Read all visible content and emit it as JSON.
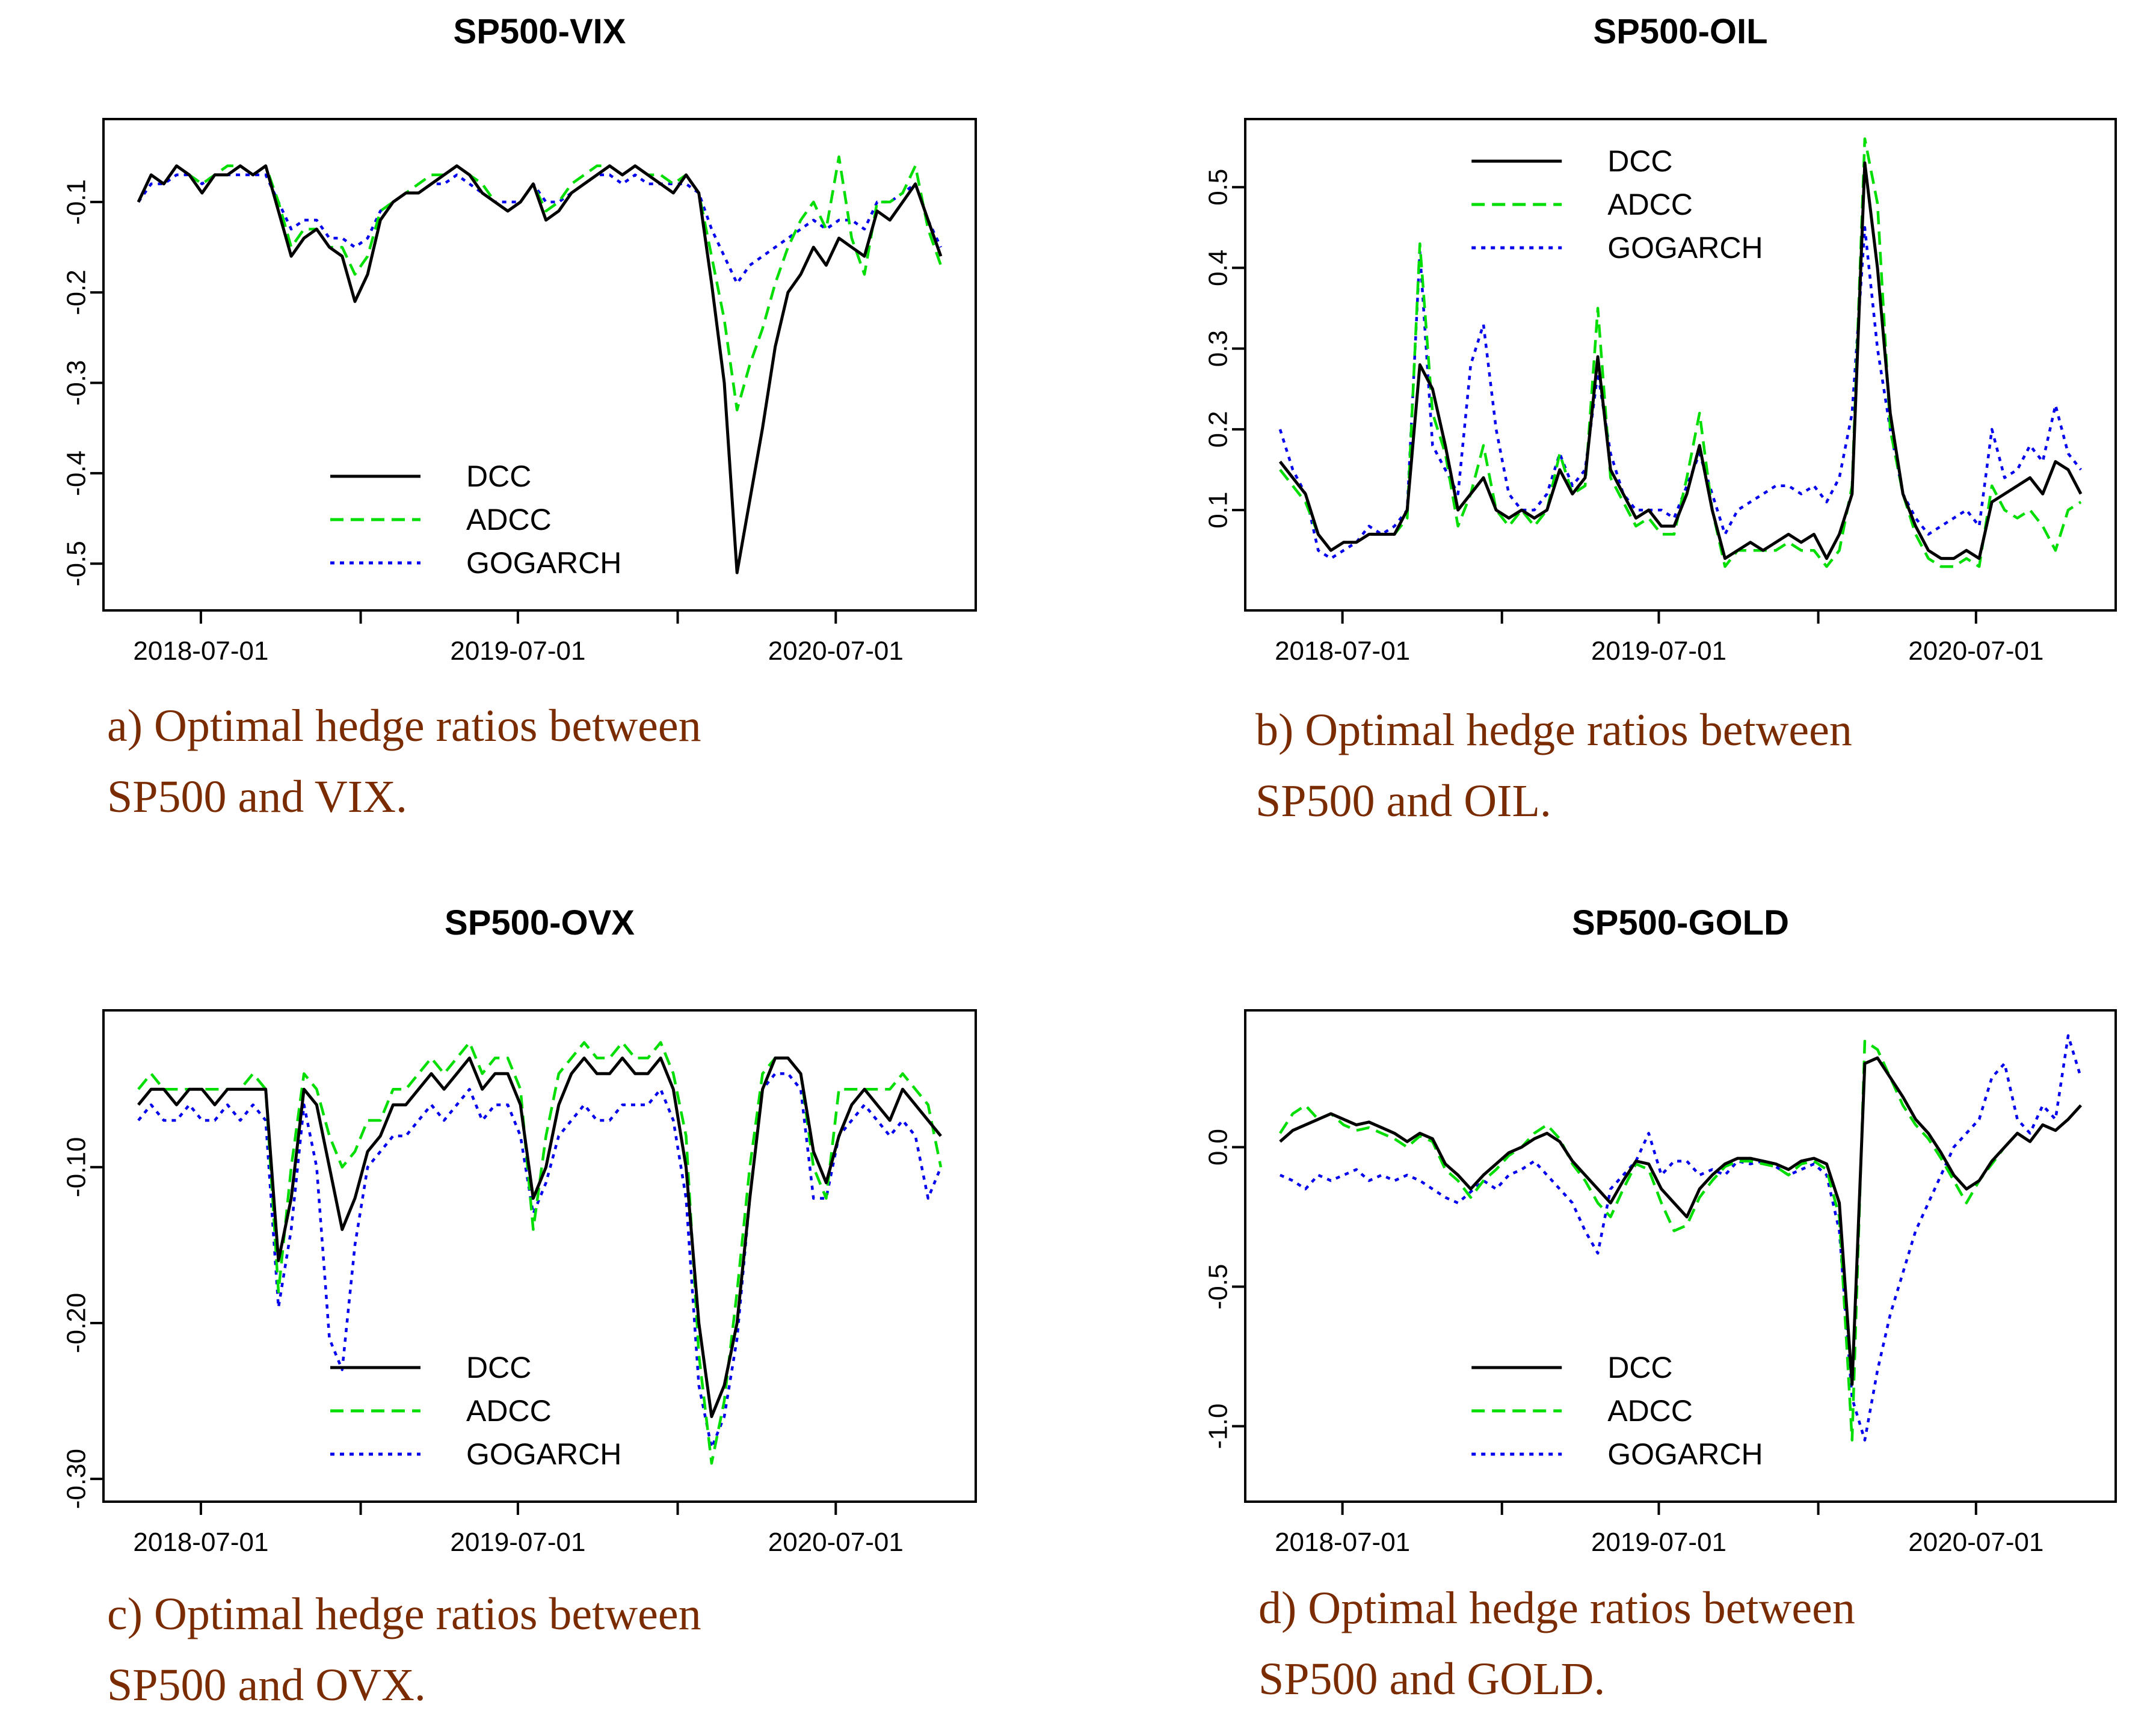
{
  "colors": {
    "DCC": "#000000",
    "ADCC": "#00dd00",
    "GOGARCH": "#0000ee",
    "caption": "#7a2c00"
  },
  "chart_data": [
    {
      "id": "a",
      "type": "line",
      "title": "SP500-VIX",
      "x_labels": [
        "2018-07-01",
        "2019-07-01",
        "2020-07-01"
      ],
      "x_range": [
        "2018-04-20",
        "2020-10-30"
      ],
      "ylim": [
        -0.53,
        -0.03
      ],
      "y_ticks": [
        -0.1,
        -0.2,
        -0.3,
        -0.4,
        -0.5
      ],
      "y_tick_labels": [
        "-0.1",
        "-0.2",
        "-0.3",
        "-0.4",
        "-0.5"
      ],
      "legend": [
        "DCC",
        "ADCC",
        "GOGARCH"
      ],
      "legend_position": "bottom-center",
      "series": [
        {
          "name": "DCC",
          "values": [
            -0.1,
            -0.07,
            -0.08,
            -0.06,
            -0.07,
            -0.09,
            -0.07,
            -0.07,
            -0.06,
            -0.07,
            -0.06,
            -0.11,
            -0.16,
            -0.14,
            -0.13,
            -0.15,
            -0.16,
            -0.21,
            -0.18,
            -0.12,
            -0.1,
            -0.09,
            -0.09,
            -0.08,
            -0.07,
            -0.06,
            -0.07,
            -0.09,
            -0.1,
            -0.11,
            -0.1,
            -0.08,
            -0.12,
            -0.11,
            -0.09,
            -0.08,
            -0.07,
            -0.06,
            -0.07,
            -0.06,
            -0.07,
            -0.08,
            -0.09,
            -0.07,
            -0.09,
            -0.19,
            -0.3,
            -0.51,
            -0.43,
            -0.35,
            -0.26,
            -0.2,
            -0.18,
            -0.15,
            -0.17,
            -0.14,
            -0.15,
            -0.16,
            -0.11,
            -0.12,
            -0.1,
            -0.08,
            -0.12,
            -0.16
          ]
        },
        {
          "name": "ADCC",
          "values": [
            -0.1,
            -0.07,
            -0.08,
            -0.06,
            -0.07,
            -0.08,
            -0.07,
            -0.06,
            -0.06,
            -0.07,
            -0.06,
            -0.1,
            -0.15,
            -0.13,
            -0.13,
            -0.15,
            -0.15,
            -0.18,
            -0.16,
            -0.11,
            -0.1,
            -0.09,
            -0.08,
            -0.07,
            -0.07,
            -0.06,
            -0.07,
            -0.08,
            -0.1,
            -0.11,
            -0.1,
            -0.08,
            -0.11,
            -0.1,
            -0.08,
            -0.07,
            -0.06,
            -0.06,
            -0.07,
            -0.06,
            -0.07,
            -0.07,
            -0.08,
            -0.07,
            -0.09,
            -0.16,
            -0.23,
            -0.33,
            -0.28,
            -0.24,
            -0.19,
            -0.15,
            -0.12,
            -0.1,
            -0.13,
            -0.05,
            -0.14,
            -0.18,
            -0.1,
            -0.1,
            -0.09,
            -0.06,
            -0.13,
            -0.17
          ]
        },
        {
          "name": "GOGARCH",
          "values": [
            -0.1,
            -0.08,
            -0.08,
            -0.07,
            -0.07,
            -0.08,
            -0.07,
            -0.07,
            -0.07,
            -0.07,
            -0.07,
            -0.1,
            -0.13,
            -0.12,
            -0.12,
            -0.14,
            -0.14,
            -0.15,
            -0.14,
            -0.11,
            -0.1,
            -0.09,
            -0.09,
            -0.08,
            -0.08,
            -0.07,
            -0.08,
            -0.09,
            -0.1,
            -0.1,
            -0.1,
            -0.08,
            -0.1,
            -0.1,
            -0.09,
            -0.08,
            -0.07,
            -0.07,
            -0.08,
            -0.07,
            -0.08,
            -0.08,
            -0.08,
            -0.08,
            -0.09,
            -0.13,
            -0.16,
            -0.19,
            -0.17,
            -0.16,
            -0.15,
            -0.14,
            -0.13,
            -0.12,
            -0.13,
            -0.12,
            -0.12,
            -0.13,
            -0.1,
            -0.1,
            -0.09,
            -0.08,
            -0.12,
            -0.15
          ]
        }
      ],
      "caption": [
        "a) Optimal hedge ratios between",
        "SP500 and VIX."
      ]
    },
    {
      "id": "b",
      "type": "line",
      "title": "SP500-OIL",
      "x_labels": [
        "2018-07-01",
        "2019-07-01",
        "2020-07-01"
      ],
      "x_range": [
        "2018-04-20",
        "2020-10-30"
      ],
      "ylim": [
        0.0,
        0.56
      ],
      "y_ticks": [
        0.1,
        0.2,
        0.3,
        0.4,
        0.5
      ],
      "y_tick_labels": [
        "0.1",
        "0.2",
        "0.3",
        "0.4",
        "0.5"
      ],
      "legend": [
        "DCC",
        "ADCC",
        "GOGARCH"
      ],
      "legend_position": "top-center",
      "series": [
        {
          "name": "DCC",
          "values": [
            0.16,
            0.14,
            0.12,
            0.07,
            0.05,
            0.06,
            0.06,
            0.07,
            0.07,
            0.07,
            0.1,
            0.28,
            0.25,
            0.18,
            0.1,
            0.12,
            0.14,
            0.1,
            0.09,
            0.1,
            0.09,
            0.1,
            0.15,
            0.12,
            0.14,
            0.29,
            0.15,
            0.12,
            0.09,
            0.1,
            0.08,
            0.08,
            0.12,
            0.18,
            0.1,
            0.04,
            0.05,
            0.06,
            0.05,
            0.06,
            0.07,
            0.06,
            0.07,
            0.04,
            0.07,
            0.12,
            0.53,
            0.4,
            0.22,
            0.12,
            0.08,
            0.05,
            0.04,
            0.04,
            0.05,
            0.04,
            0.11,
            0.12,
            0.13,
            0.14,
            0.12,
            0.16,
            0.15,
            0.12
          ]
        },
        {
          "name": "ADCC",
          "values": [
            0.15,
            0.13,
            0.11,
            0.07,
            0.05,
            0.06,
            0.06,
            0.07,
            0.07,
            0.07,
            0.09,
            0.43,
            0.22,
            0.17,
            0.08,
            0.12,
            0.18,
            0.1,
            0.08,
            0.1,
            0.08,
            0.1,
            0.17,
            0.12,
            0.13,
            0.35,
            0.14,
            0.11,
            0.08,
            0.09,
            0.07,
            0.07,
            0.14,
            0.22,
            0.1,
            0.03,
            0.05,
            0.05,
            0.05,
            0.05,
            0.06,
            0.05,
            0.05,
            0.03,
            0.05,
            0.13,
            0.56,
            0.48,
            0.2,
            0.12,
            0.07,
            0.04,
            0.03,
            0.03,
            0.04,
            0.03,
            0.13,
            0.1,
            0.09,
            0.1,
            0.08,
            0.05,
            0.1,
            0.11
          ]
        },
        {
          "name": "GOGARCH",
          "values": [
            0.2,
            0.15,
            0.12,
            0.05,
            0.04,
            0.05,
            0.06,
            0.08,
            0.07,
            0.08,
            0.1,
            0.42,
            0.18,
            0.15,
            0.12,
            0.28,
            0.33,
            0.2,
            0.12,
            0.1,
            0.1,
            0.12,
            0.17,
            0.13,
            0.15,
            0.27,
            0.17,
            0.12,
            0.1,
            0.1,
            0.1,
            0.09,
            0.13,
            0.17,
            0.12,
            0.07,
            0.1,
            0.11,
            0.12,
            0.13,
            0.13,
            0.12,
            0.13,
            0.11,
            0.14,
            0.22,
            0.45,
            0.3,
            0.2,
            0.12,
            0.09,
            0.07,
            0.08,
            0.09,
            0.1,
            0.08,
            0.2,
            0.14,
            0.15,
            0.18,
            0.16,
            0.23,
            0.17,
            0.15
          ]
        }
      ],
      "caption": [
        "b) Optimal hedge ratios between",
        "SP500 and OIL."
      ]
    },
    {
      "id": "c",
      "type": "line",
      "title": "SP500-OVX",
      "x_labels": [
        "2018-07-01",
        "2019-07-01",
        "2020-07-01"
      ],
      "x_range": [
        "2018-04-20",
        "2020-10-30"
      ],
      "ylim": [
        -0.302,
        -0.012
      ],
      "y_ticks": [
        -0.1,
        -0.2,
        -0.3
      ],
      "y_tick_labels": [
        "-0.10",
        "-0.20",
        "-0.30"
      ],
      "legend": [
        "DCC",
        "ADCC",
        "GOGARCH"
      ],
      "legend_position": "bottom-center",
      "series": [
        {
          "name": "DCC",
          "values": [
            -0.06,
            -0.05,
            -0.05,
            -0.06,
            -0.05,
            -0.05,
            -0.06,
            -0.05,
            -0.05,
            -0.05,
            -0.05,
            -0.16,
            -0.12,
            -0.05,
            -0.06,
            -0.1,
            -0.14,
            -0.12,
            -0.09,
            -0.08,
            -0.06,
            -0.06,
            -0.05,
            -0.04,
            -0.05,
            -0.04,
            -0.03,
            -0.05,
            -0.04,
            -0.04,
            -0.06,
            -0.12,
            -0.1,
            -0.06,
            -0.04,
            -0.03,
            -0.04,
            -0.04,
            -0.03,
            -0.04,
            -0.04,
            -0.03,
            -0.05,
            -0.1,
            -0.2,
            -0.26,
            -0.24,
            -0.2,
            -0.12,
            -0.05,
            -0.03,
            -0.03,
            -0.04,
            -0.09,
            -0.11,
            -0.08,
            -0.06,
            -0.05,
            -0.06,
            -0.07,
            -0.05,
            -0.06,
            -0.07,
            -0.08
          ]
        },
        {
          "name": "ADCC",
          "values": [
            -0.05,
            -0.04,
            -0.05,
            -0.05,
            -0.05,
            -0.05,
            -0.05,
            -0.05,
            -0.05,
            -0.04,
            -0.05,
            -0.18,
            -0.1,
            -0.04,
            -0.05,
            -0.08,
            -0.1,
            -0.09,
            -0.07,
            -0.07,
            -0.05,
            -0.05,
            -0.04,
            -0.03,
            -0.04,
            -0.03,
            -0.02,
            -0.04,
            -0.03,
            -0.03,
            -0.05,
            -0.14,
            -0.08,
            -0.04,
            -0.03,
            -0.02,
            -0.03,
            -0.03,
            -0.02,
            -0.03,
            -0.03,
            -0.02,
            -0.04,
            -0.08,
            -0.22,
            -0.29,
            -0.25,
            -0.18,
            -0.1,
            -0.04,
            -0.03,
            -0.03,
            -0.04,
            -0.1,
            -0.12,
            -0.05,
            -0.05,
            -0.05,
            -0.05,
            -0.05,
            -0.04,
            -0.05,
            -0.06,
            -0.1
          ]
        },
        {
          "name": "GOGARCH",
          "values": [
            -0.07,
            -0.06,
            -0.07,
            -0.07,
            -0.06,
            -0.07,
            -0.07,
            -0.06,
            -0.07,
            -0.06,
            -0.07,
            -0.19,
            -0.14,
            -0.06,
            -0.1,
            -0.21,
            -0.23,
            -0.15,
            -0.1,
            -0.09,
            -0.08,
            -0.08,
            -0.07,
            -0.06,
            -0.07,
            -0.06,
            -0.05,
            -0.07,
            -0.06,
            -0.06,
            -0.08,
            -0.13,
            -0.11,
            -0.08,
            -0.07,
            -0.06,
            -0.07,
            -0.07,
            -0.06,
            -0.06,
            -0.06,
            -0.05,
            -0.07,
            -0.12,
            -0.24,
            -0.28,
            -0.26,
            -0.21,
            -0.12,
            -0.05,
            -0.04,
            -0.04,
            -0.05,
            -0.12,
            -0.12,
            -0.08,
            -0.07,
            -0.06,
            -0.07,
            -0.08,
            -0.07,
            -0.08,
            -0.12,
            -0.1
          ]
        }
      ],
      "caption": [
        "c) Optimal hedge ratios between",
        "SP500 and OVX."
      ]
    },
    {
      "id": "d",
      "type": "line",
      "title": "SP500-GOLD",
      "x_labels": [
        "2018-07-01",
        "2019-07-01",
        "2020-07-01"
      ],
      "x_range": [
        "2018-04-20",
        "2020-10-30"
      ],
      "ylim": [
        -1.2,
        0.42
      ],
      "y_ticks": [
        0.0,
        -0.5,
        -1.0
      ],
      "y_tick_labels": [
        "0.0",
        "-0.5",
        "-1.0"
      ],
      "legend": [
        "DCC",
        "ADCC",
        "GOGARCH"
      ],
      "legend_position": "bottom-center",
      "series": [
        {
          "name": "DCC",
          "values": [
            0.02,
            0.06,
            0.08,
            0.1,
            0.12,
            0.1,
            0.08,
            0.09,
            0.07,
            0.05,
            0.02,
            0.05,
            0.03,
            -0.06,
            -0.1,
            -0.15,
            -0.1,
            -0.06,
            -0.02,
            0.0,
            0.03,
            0.05,
            0.02,
            -0.05,
            -0.1,
            -0.15,
            -0.2,
            -0.12,
            -0.05,
            -0.06,
            -0.15,
            -0.2,
            -0.25,
            -0.15,
            -0.1,
            -0.06,
            -0.04,
            -0.04,
            -0.05,
            -0.06,
            -0.08,
            -0.05,
            -0.04,
            -0.06,
            -0.2,
            -0.85,
            0.3,
            0.32,
            0.25,
            0.18,
            0.1,
            0.05,
            -0.02,
            -0.1,
            -0.15,
            -0.12,
            -0.05,
            0.0,
            0.05,
            0.02,
            0.08,
            0.06,
            0.1,
            0.15
          ]
        },
        {
          "name": "ADCC",
          "values": [
            0.05,
            0.12,
            0.15,
            0.1,
            0.12,
            0.08,
            0.06,
            0.07,
            0.05,
            0.03,
            0.0,
            0.04,
            0.02,
            -0.08,
            -0.12,
            -0.18,
            -0.12,
            -0.08,
            -0.03,
            0.0,
            0.05,
            0.08,
            0.03,
            -0.06,
            -0.12,
            -0.2,
            -0.25,
            -0.15,
            -0.06,
            -0.08,
            -0.2,
            -0.3,
            -0.28,
            -0.18,
            -0.12,
            -0.07,
            -0.05,
            -0.05,
            -0.06,
            -0.07,
            -0.1,
            -0.06,
            -0.05,
            -0.08,
            -0.25,
            -1.05,
            0.38,
            0.35,
            0.25,
            0.15,
            0.08,
            0.03,
            -0.04,
            -0.12,
            -0.2,
            -0.12,
            -0.06,
            0.0,
            0.05,
            0.02,
            0.08,
            0.06,
            0.1,
            0.15
          ]
        },
        {
          "name": "GOGARCH",
          "values": [
            -0.1,
            -0.12,
            -0.15,
            -0.1,
            -0.12,
            -0.1,
            -0.08,
            -0.12,
            -0.1,
            -0.12,
            -0.1,
            -0.12,
            -0.15,
            -0.18,
            -0.2,
            -0.16,
            -0.12,
            -0.15,
            -0.1,
            -0.08,
            -0.05,
            -0.1,
            -0.15,
            -0.2,
            -0.3,
            -0.38,
            -0.15,
            -0.1,
            -0.05,
            0.05,
            -0.1,
            -0.05,
            -0.05,
            -0.1,
            -0.08,
            -0.1,
            -0.05,
            -0.06,
            -0.05,
            -0.07,
            -0.1,
            -0.08,
            -0.06,
            -0.1,
            -0.3,
            -0.9,
            -1.05,
            -0.8,
            -0.6,
            -0.45,
            -0.3,
            -0.2,
            -0.1,
            0.0,
            0.05,
            0.1,
            0.25,
            0.3,
            0.1,
            0.05,
            0.15,
            0.1,
            0.4,
            0.25
          ]
        }
      ],
      "caption": [
        "d) Optimal hedge ratios between",
        "SP500 and GOLD."
      ]
    }
  ]
}
